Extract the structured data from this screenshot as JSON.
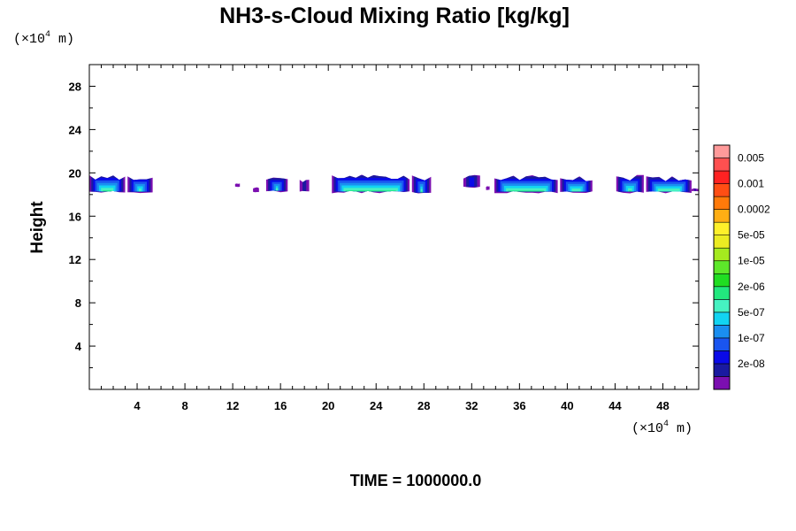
{
  "chart_data": {
    "type": "heatmap",
    "title": "NH3-s-Cloud Mixing Ratio [kg/kg]",
    "ylabel": "Height",
    "xlabel": "",
    "x_unit": {
      "prefix": "(×10",
      "exp": "4",
      "suffix": " m)"
    },
    "y_unit": {
      "prefix": "(×10",
      "exp": "4",
      "suffix": " m)"
    },
    "xlim": [
      0,
      51
    ],
    "ylim": [
      0,
      30
    ],
    "x_ticks": [
      4,
      8,
      12,
      16,
      20,
      24,
      28,
      32,
      36,
      40,
      44,
      48
    ],
    "x_tick_labels": [
      "4",
      "8",
      "12",
      "16",
      "20",
      "24",
      "28",
      "32",
      "36",
      "40",
      "44",
      "48"
    ],
    "y_ticks": [
      4,
      8,
      12,
      16,
      20,
      24,
      28
    ],
    "y_tick_labels": [
      "4",
      "8",
      "12",
      "16",
      "20",
      "24",
      "28"
    ],
    "colorbar": {
      "colors": [
        "#7b0fb0",
        "#1a1aa0",
        "#0a0ae8",
        "#1a55f0",
        "#1a8ef0",
        "#12d4f2",
        "#46f2c2",
        "#22e87e",
        "#20dd22",
        "#5de82a",
        "#a5ea1f",
        "#ecec22",
        "#fff02a",
        "#ffae14",
        "#ff7a0a",
        "#ff4e14",
        "#ff2222",
        "#ff5050",
        "#ff9a9a"
      ],
      "labels": [
        "2e-08",
        "1e-07",
        "5e-07",
        "2e-06",
        "1e-05",
        "5e-05",
        "0.0002",
        "0.001",
        "0.005"
      ]
    },
    "cloud_patches": [
      {
        "x0": 0.0,
        "x1": 3.0,
        "ybot": 18.1,
        "ytop": 20.0
      },
      {
        "x0": 3.2,
        "x1": 5.3,
        "ybot": 18.1,
        "ytop": 19.8
      },
      {
        "x0": 12.2,
        "x1": 12.6,
        "ybot": 18.7,
        "ytop": 19.1
      },
      {
        "x0": 13.7,
        "x1": 14.2,
        "ybot": 18.2,
        "ytop": 18.7
      },
      {
        "x0": 14.8,
        "x1": 16.6,
        "ybot": 18.2,
        "ytop": 19.7
      },
      {
        "x0": 17.6,
        "x1": 18.4,
        "ybot": 18.2,
        "ytop": 19.6
      },
      {
        "x0": 20.3,
        "x1": 26.8,
        "ybot": 18.1,
        "ytop": 20.0
      },
      {
        "x0": 27.0,
        "x1": 28.6,
        "ybot": 18.0,
        "ytop": 19.9
      },
      {
        "x0": 31.3,
        "x1": 32.7,
        "ybot": 18.6,
        "ytop": 19.9
      },
      {
        "x0": 33.2,
        "x1": 33.5,
        "ybot": 18.4,
        "ytop": 18.8
      },
      {
        "x0": 33.9,
        "x1": 39.2,
        "ybot": 18.1,
        "ytop": 19.9
      },
      {
        "x0": 39.4,
        "x1": 42.1,
        "ybot": 18.1,
        "ytop": 19.8
      },
      {
        "x0": 44.1,
        "x1": 46.4,
        "ybot": 18.1,
        "ytop": 19.9
      },
      {
        "x0": 46.6,
        "x1": 50.4,
        "ybot": 18.1,
        "ytop": 19.8
      },
      {
        "x0": 50.4,
        "x1": 51.0,
        "ybot": 18.3,
        "ytop": 18.6
      }
    ]
  },
  "time_label": "TIME = 1000000.0"
}
